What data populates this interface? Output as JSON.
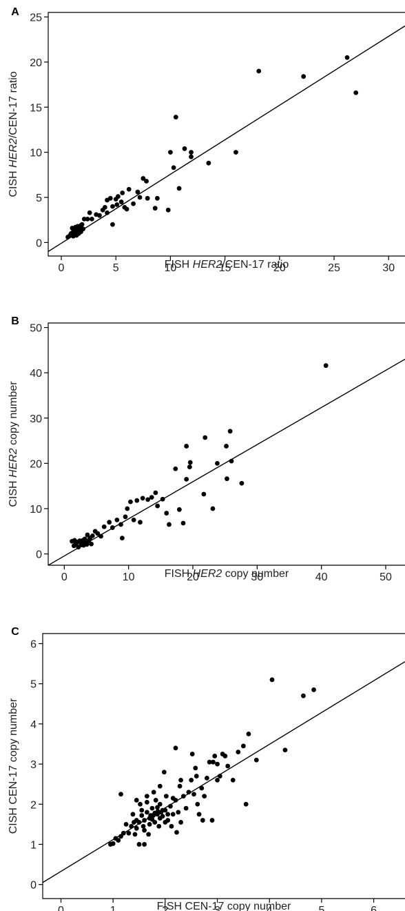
{
  "chart_data": [
    {
      "type": "scatter",
      "panel": "A",
      "xlabel_parts": [
        "FISH ",
        "HER2",
        "/CEN-17 ratio"
      ],
      "ylabel_parts": [
        "CISH ",
        "HER2",
        "/CEN-17 ratio"
      ],
      "xlim": [
        -1.2,
        31.5
      ],
      "ylim": [
        -1.5,
        25.5
      ],
      "xticks": [
        0,
        5,
        10,
        15,
        20,
        25,
        30
      ],
      "yticks": [
        0,
        5,
        10,
        15,
        20,
        25
      ],
      "fit_line": [
        [
          -1.2,
          -1.0
        ],
        [
          31.5,
          24.0
        ]
      ],
      "points": [
        [
          0.6,
          0.6
        ],
        [
          0.8,
          0.8
        ],
        [
          0.9,
          1.0
        ],
        [
          1.0,
          0.9
        ],
        [
          1.1,
          1.2
        ],
        [
          1.2,
          1.0
        ],
        [
          1.2,
          1.5
        ],
        [
          1.3,
          1.3
        ],
        [
          1.4,
          1.1
        ],
        [
          1.5,
          1.8
        ],
        [
          1.6,
          1.4
        ],
        [
          1.7,
          1.6
        ],
        [
          1.8,
          1.2
        ],
        [
          1.9,
          2.0
        ],
        [
          1.0,
          1.6
        ],
        [
          1.4,
          0.8
        ],
        [
          1.8,
          1.9
        ],
        [
          1.3,
          1.7
        ],
        [
          2.0,
          1.5
        ],
        [
          1.6,
          1.0
        ],
        [
          1.1,
          0.7
        ],
        [
          2.1,
          2.6
        ],
        [
          2.4,
          2.6
        ],
        [
          2.6,
          3.3
        ],
        [
          2.8,
          2.6
        ],
        [
          3.2,
          3.1
        ],
        [
          3.5,
          3.0
        ],
        [
          3.8,
          3.6
        ],
        [
          4.0,
          3.9
        ],
        [
          4.2,
          3.3
        ],
        [
          4.2,
          4.7
        ],
        [
          4.5,
          4.9
        ],
        [
          4.7,
          4.0
        ],
        [
          4.7,
          2.0
        ],
        [
          5.0,
          4.8
        ],
        [
          5.1,
          4.2
        ],
        [
          5.2,
          5.1
        ],
        [
          5.5,
          4.5
        ],
        [
          5.6,
          5.5
        ],
        [
          5.8,
          3.9
        ],
        [
          6.0,
          3.7
        ],
        [
          6.2,
          5.9
        ],
        [
          6.6,
          4.3
        ],
        [
          7.0,
          5.6
        ],
        [
          7.2,
          5.0
        ],
        [
          7.5,
          7.1
        ],
        [
          7.8,
          6.8
        ],
        [
          7.9,
          4.9
        ],
        [
          8.6,
          3.8
        ],
        [
          8.8,
          4.9
        ],
        [
          9.8,
          3.6
        ],
        [
          10.0,
          10.0
        ],
        [
          10.3,
          8.3
        ],
        [
          10.5,
          13.9
        ],
        [
          10.8,
          6.0
        ],
        [
          11.3,
          10.4
        ],
        [
          11.9,
          10.0
        ],
        [
          11.9,
          9.5
        ],
        [
          13.5,
          8.8
        ],
        [
          16.0,
          10.0
        ],
        [
          18.1,
          19.0
        ],
        [
          22.2,
          18.4
        ],
        [
          26.2,
          20.5
        ],
        [
          27.0,
          16.6
        ]
      ]
    },
    {
      "type": "scatter",
      "panel": "B",
      "xlabel_parts": [
        "FISH ",
        "HER2",
        " copy number"
      ],
      "ylabel_parts": [
        "CISH ",
        "HER2",
        " copy number"
      ],
      "xlim": [
        -2.5,
        53
      ],
      "ylim": [
        -2.5,
        51
      ],
      "xticks": [
        0,
        10,
        20,
        30,
        40,
        50
      ],
      "yticks": [
        0,
        10,
        20,
        30,
        40,
        50
      ],
      "fit_line": [
        [
          -2.5,
          -2.5
        ],
        [
          53,
          43.0
        ]
      ],
      "points": [
        [
          1.2,
          2.8
        ],
        [
          1.5,
          1.8
        ],
        [
          1.8,
          2.2
        ],
        [
          2.0,
          2.6
        ],
        [
          2.2,
          1.5
        ],
        [
          2.4,
          2.9
        ],
        [
          2.6,
          2.0
        ],
        [
          2.8,
          2.4
        ],
        [
          3.0,
          1.9
        ],
        [
          3.2,
          3.3
        ],
        [
          3.4,
          2.6
        ],
        [
          3.6,
          4.2
        ],
        [
          3.8,
          2.9
        ],
        [
          4.0,
          3.5
        ],
        [
          4.2,
          2.2
        ],
        [
          1.6,
          3.0
        ],
        [
          2.9,
          3.0
        ],
        [
          3.5,
          2.1
        ],
        [
          4.4,
          4.0
        ],
        [
          4.8,
          5.0
        ],
        [
          5.2,
          4.5
        ],
        [
          5.7,
          3.9
        ],
        [
          6.2,
          6.0
        ],
        [
          7.0,
          7.0
        ],
        [
          7.5,
          5.8
        ],
        [
          8.2,
          7.5
        ],
        [
          8.8,
          6.5
        ],
        [
          9.0,
          3.5
        ],
        [
          9.5,
          8.2
        ],
        [
          9.8,
          10.0
        ],
        [
          10.3,
          11.5
        ],
        [
          10.8,
          7.5
        ],
        [
          11.3,
          11.8
        ],
        [
          11.8,
          7.0
        ],
        [
          12.2,
          12.3
        ],
        [
          13.0,
          12.0
        ],
        [
          13.6,
          12.5
        ],
        [
          14.2,
          13.5
        ],
        [
          14.5,
          10.6
        ],
        [
          15.3,
          12.1
        ],
        [
          15.9,
          9.0
        ],
        [
          16.3,
          6.5
        ],
        [
          17.3,
          18.8
        ],
        [
          17.9,
          9.8
        ],
        [
          18.5,
          6.8
        ],
        [
          19.0,
          16.5
        ],
        [
          19.0,
          23.8
        ],
        [
          19.5,
          19.2
        ],
        [
          19.6,
          20.2
        ],
        [
          21.7,
          13.2
        ],
        [
          21.9,
          25.7
        ],
        [
          23.1,
          10.0
        ],
        [
          23.8,
          20.0
        ],
        [
          25.2,
          23.8
        ],
        [
          25.3,
          16.6
        ],
        [
          25.8,
          27.1
        ],
        [
          26.0,
          20.5
        ],
        [
          27.6,
          15.6
        ],
        [
          40.7,
          41.6
        ]
      ]
    },
    {
      "type": "scatter",
      "panel": "C",
      "xlabel": "FISH CEN-17 copy number",
      "ylabel": "CISH CEN-17 copy number",
      "xlim": [
        -0.35,
        6.6
      ],
      "ylim": [
        -0.35,
        6.25
      ],
      "xticks": [
        0,
        1,
        2,
        3,
        4,
        5,
        6
      ],
      "yticks": [
        0,
        1,
        2,
        3,
        4,
        5,
        6
      ],
      "fit_line": [
        [
          -0.35,
          0.05
        ],
        [
          6.6,
          5.55
        ]
      ],
      "points": [
        [
          0.95,
          1.0
        ],
        [
          1.0,
          1.02
        ],
        [
          1.05,
          1.15
        ],
        [
          1.1,
          1.1
        ],
        [
          1.15,
          1.2
        ],
        [
          1.2,
          1.28
        ],
        [
          1.25,
          1.5
        ],
        [
          1.3,
          1.28
        ],
        [
          1.35,
          1.45
        ],
        [
          1.4,
          1.55
        ],
        [
          1.45,
          1.6
        ],
        [
          1.5,
          1.55
        ],
        [
          1.55,
          1.72
        ],
        [
          1.6,
          1.35
        ],
        [
          1.65,
          1.8
        ],
        [
          1.7,
          1.65
        ],
        [
          1.75,
          1.9
        ],
        [
          1.8,
          1.55
        ],
        [
          1.85,
          1.75
        ],
        [
          1.9,
          2.0
        ],
        [
          1.95,
          1.7
        ],
        [
          2.0,
          1.85
        ],
        [
          2.05,
          1.6
        ],
        [
          2.1,
          1.95
        ],
        [
          2.15,
          1.75
        ],
        [
          2.2,
          2.1
        ],
        [
          2.25,
          1.8
        ],
        [
          2.3,
          1.55
        ],
        [
          1.45,
          1.4
        ],
        [
          1.55,
          1.85
        ],
        [
          1.6,
          1.6
        ],
        [
          1.7,
          1.5
        ],
        [
          1.75,
          1.62
        ],
        [
          1.8,
          1.78
        ],
        [
          1.85,
          1.92
        ],
        [
          1.9,
          1.65
        ],
        [
          1.95,
          1.85
        ],
        [
          2.0,
          1.55
        ],
        [
          1.65,
          2.05
        ],
        [
          1.52,
          2.0
        ],
        [
          1.38,
          1.75
        ],
        [
          1.42,
          1.25
        ],
        [
          1.58,
          1.45
        ],
        [
          1.68,
          1.25
        ],
        [
          1.78,
          2.3
        ],
        [
          1.82,
          2.1
        ],
        [
          1.88,
          1.45
        ],
        [
          2.02,
          2.2
        ],
        [
          2.12,
          1.45
        ],
        [
          2.22,
          1.3
        ],
        [
          1.15,
          2.25
        ],
        [
          1.45,
          2.1
        ],
        [
          1.5,
          1.0
        ],
        [
          1.6,
          1.0
        ],
        [
          1.65,
          2.2
        ],
        [
          1.72,
          1.72
        ],
        [
          1.77,
          1.72
        ],
        [
          1.86,
          1.82
        ],
        [
          1.92,
          1.8
        ],
        [
          2.05,
          1.75
        ],
        [
          2.2,
          3.4
        ],
        [
          2.3,
          2.6
        ],
        [
          2.35,
          2.2
        ],
        [
          2.4,
          1.9
        ],
        [
          2.45,
          2.3
        ],
        [
          2.5,
          2.6
        ],
        [
          2.55,
          2.25
        ],
        [
          2.6,
          2.7
        ],
        [
          2.62,
          2.0
        ],
        [
          2.65,
          1.75
        ],
        [
          2.7,
          2.4
        ],
        [
          2.72,
          1.6
        ],
        [
          2.8,
          2.65
        ],
        [
          2.85,
          3.05
        ],
        [
          2.9,
          1.6
        ],
        [
          2.95,
          3.2
        ],
        [
          3.0,
          2.6
        ],
        [
          3.05,
          2.7
        ],
        [
          3.1,
          3.25
        ],
        [
          3.15,
          3.2
        ],
        [
          3.2,
          2.95
        ],
        [
          3.3,
          2.6
        ],
        [
          3.4,
          3.3
        ],
        [
          3.5,
          3.45
        ],
        [
          3.55,
          2.0
        ],
        [
          3.6,
          3.75
        ],
        [
          3.75,
          3.1
        ],
        [
          4.05,
          5.1
        ],
        [
          4.3,
          3.35
        ],
        [
          4.65,
          4.7
        ],
        [
          4.85,
          4.85
        ],
        [
          2.15,
          2.15
        ],
        [
          2.52,
          3.25
        ],
        [
          2.75,
          2.2
        ],
        [
          2.92,
          3.05
        ],
        [
          3.0,
          3.0
        ],
        [
          1.98,
          2.8
        ],
        [
          2.28,
          2.45
        ],
        [
          2.58,
          2.9
        ],
        [
          1.9,
          2.45
        ]
      ]
    }
  ]
}
